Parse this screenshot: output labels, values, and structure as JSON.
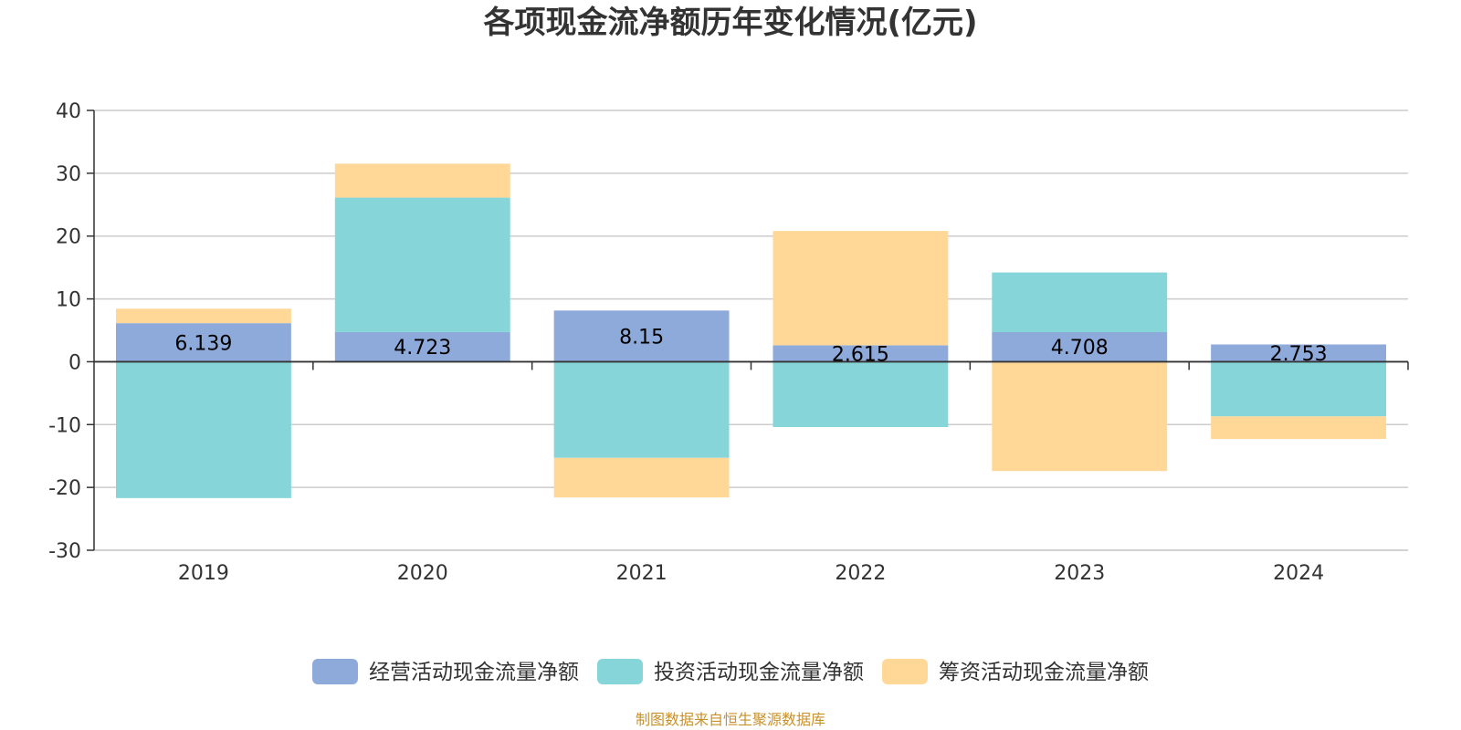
{
  "chart_data": {
    "type": "bar",
    "stacked": true,
    "title": "各项现金流净额历年变化情况(亿元)",
    "categories": [
      "2019",
      "2020",
      "2021",
      "2022",
      "2023",
      "2024"
    ],
    "ylim": [
      -30,
      40
    ],
    "yticks": [
      40,
      30,
      20,
      10,
      0,
      -10,
      -20,
      -30
    ],
    "grid": true,
    "legend_position": "bottom",
    "series": [
      {
        "name": "经营活动现金流量净额",
        "color": "#8eaadb",
        "values": [
          6.139,
          4.723,
          8.15,
          2.615,
          4.708,
          2.753
        ],
        "labels": [
          "6.139",
          "4.723",
          "8.15",
          "2.615",
          "4.708",
          "2.753"
        ]
      },
      {
        "name": "投资活动现金流量净额",
        "color": "#86d5d8",
        "values": [
          -21.7,
          21.4,
          -15.3,
          -10.4,
          9.5,
          -8.7
        ]
      },
      {
        "name": "筹资活动现金流量净额",
        "color": "#ffd898",
        "values": [
          2.3,
          5.4,
          -6.3,
          18.2,
          -17.4,
          -3.6
        ]
      }
    ],
    "source": "制图数据来自恒生聚源数据库"
  }
}
